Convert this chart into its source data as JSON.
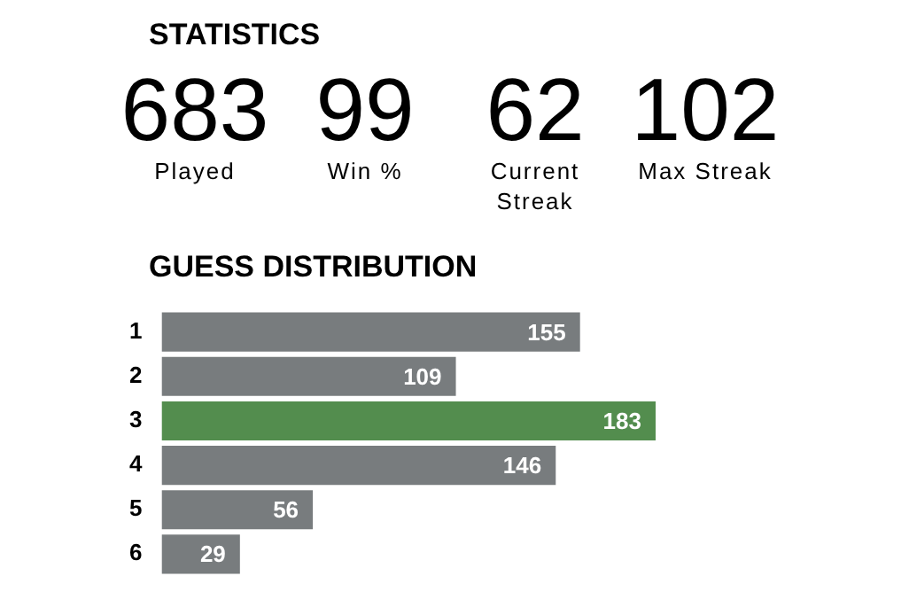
{
  "chart_data": [
    {
      "type": "other",
      "title": "STATISTICS",
      "categories": [
        "Played",
        "Win %",
        "Current Streak",
        "Max Streak"
      ],
      "values": [
        683,
        99,
        62,
        102
      ],
      "data_labels": true
    },
    {
      "type": "bar",
      "orientation": "horizontal",
      "title": "GUESS DISTRIBUTION",
      "categories": [
        "1",
        "2",
        "3",
        "4",
        "5",
        "6"
      ],
      "values": [
        155,
        109,
        183,
        146,
        56,
        29
      ],
      "colors": [
        "#787c7e",
        "#787c7e",
        "#538d4e",
        "#787c7e",
        "#787c7e",
        "#787c7e"
      ],
      "xlim": [
        0,
        183
      ],
      "tick_labels": "y",
      "data_labels": true
    }
  ]
}
